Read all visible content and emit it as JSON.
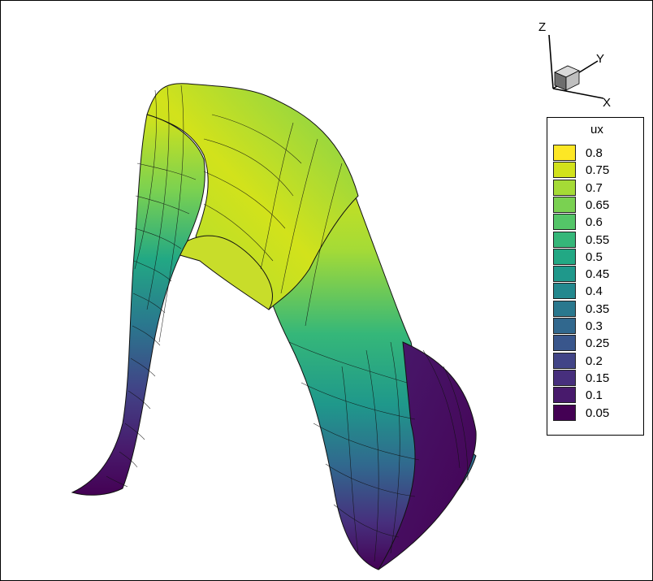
{
  "orientation_axes": {
    "z_label": "Z",
    "y_label": "Y",
    "x_label": "X"
  },
  "legend": {
    "variable": "ux",
    "levels": [
      {
        "value": "0.8",
        "color": "#fde725"
      },
      {
        "value": "0.75",
        "color": "#d2e21b"
      },
      {
        "value": "0.7",
        "color": "#a5db36"
      },
      {
        "value": "0.65",
        "color": "#7ad151"
      },
      {
        "value": "0.6",
        "color": "#54c568"
      },
      {
        "value": "0.55",
        "color": "#35b779"
      },
      {
        "value": "0.5",
        "color": "#22a884"
      },
      {
        "value": "0.45",
        "color": "#1f988b"
      },
      {
        "value": "0.4",
        "color": "#23888e"
      },
      {
        "value": "0.35",
        "color": "#2a788e"
      },
      {
        "value": "0.3",
        "color": "#31688e"
      },
      {
        "value": "0.25",
        "color": "#39568c"
      },
      {
        "value": "0.2",
        "color": "#414487"
      },
      {
        "value": "0.15",
        "color": "#472f7d"
      },
      {
        "value": "0.1",
        "color": "#481a6c"
      },
      {
        "value": "0.05",
        "color": "#440154"
      }
    ]
  },
  "mesh_line_color": "#111111"
}
